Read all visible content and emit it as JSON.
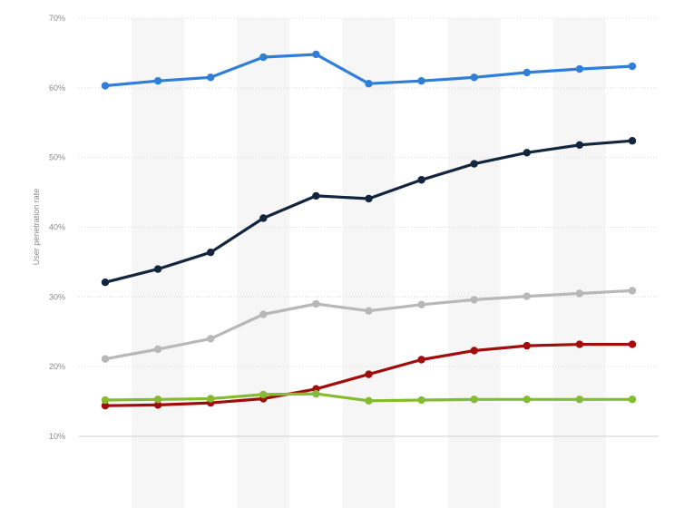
{
  "chart_data": {
    "type": "line",
    "title": "",
    "xlabel": "",
    "ylabel": "User penetration rate",
    "ylim": [
      10,
      70
    ],
    "yticks": [
      "10%",
      "20%",
      "30%",
      "40%",
      "50%",
      "60%",
      "70%"
    ],
    "grid": true,
    "x_count": 11,
    "series": [
      {
        "color": "#2f7ed8",
        "values": [
          60.3,
          61.0,
          61.5,
          64.4,
          64.8,
          60.6,
          61.0,
          61.5,
          62.2,
          62.7,
          63.1
        ]
      },
      {
        "color": "#14263d",
        "values": [
          32.1,
          34.0,
          36.4,
          41.3,
          44.5,
          44.1,
          46.8,
          49.1,
          50.7,
          51.8,
          52.4
        ]
      },
      {
        "color": "#b8b8b8",
        "values": [
          21.1,
          22.5,
          24.0,
          27.5,
          29.0,
          28.0,
          28.9,
          29.6,
          30.1,
          30.5,
          30.9
        ]
      },
      {
        "color": "#a10d0d",
        "values": [
          14.4,
          14.5,
          14.8,
          15.4,
          16.8,
          18.9,
          21.0,
          22.3,
          23.0,
          23.2,
          23.2
        ]
      },
      {
        "color": "#85bb2f",
        "values": [
          15.2,
          15.3,
          15.4,
          16.0,
          16.1,
          15.1,
          15.2,
          15.3,
          15.3,
          15.3,
          15.3
        ]
      }
    ]
  }
}
